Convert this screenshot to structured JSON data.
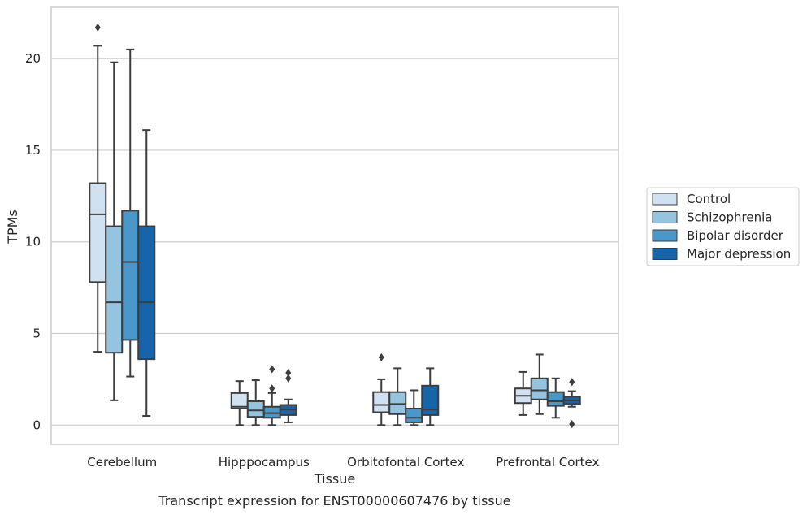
{
  "chart_data": {
    "type": "boxplot",
    "caption": "Transcript expression for ENST00000607476 by tissue",
    "xlabel": "Tissue",
    "ylabel": "TPMs",
    "ylim": [
      -1.05,
      22.8
    ],
    "yticks": [
      0,
      5,
      10,
      15,
      20
    ],
    "grid": "horizontal",
    "legend_position": "right",
    "categories": [
      "Cerebellum",
      "Hipppocampus",
      "Orbitofontal Cortex",
      "Prefrontal Cortex"
    ],
    "series": [
      {
        "name": "Control",
        "color": "#d0e1f2",
        "boxes": [
          {
            "whisker_low": 4.0,
            "q1": 7.8,
            "median": 11.5,
            "q3": 13.2,
            "whisker_high": 20.7,
            "outliers": [
              21.7
            ]
          },
          {
            "whisker_low": 0.0,
            "q1": 0.9,
            "median": 1.0,
            "q3": 1.75,
            "whisker_high": 2.4,
            "outliers": []
          },
          {
            "whisker_low": 0.0,
            "q1": 0.7,
            "median": 1.1,
            "q3": 1.8,
            "whisker_high": 2.5,
            "outliers": [
              3.7
            ]
          },
          {
            "whisker_low": 0.55,
            "q1": 1.2,
            "median": 1.6,
            "q3": 2.0,
            "whisker_high": 2.9,
            "outliers": []
          }
        ]
      },
      {
        "name": "Schizophrenia",
        "color": "#94c4df",
        "boxes": [
          {
            "whisker_low": 1.35,
            "q1": 3.95,
            "median": 6.7,
            "q3": 10.85,
            "whisker_high": 19.8,
            "outliers": []
          },
          {
            "whisker_low": 0.0,
            "q1": 0.45,
            "median": 0.8,
            "q3": 1.3,
            "whisker_high": 2.45,
            "outliers": []
          },
          {
            "whisker_low": 0.0,
            "q1": 0.6,
            "median": 1.15,
            "q3": 1.8,
            "whisker_high": 3.1,
            "outliers": []
          },
          {
            "whisker_low": 0.6,
            "q1": 1.4,
            "median": 1.9,
            "q3": 2.55,
            "whisker_high": 3.85,
            "outliers": []
          }
        ]
      },
      {
        "name": "Bipolar disorder",
        "color": "#4a98c9",
        "boxes": [
          {
            "whisker_low": 2.65,
            "q1": 4.65,
            "median": 8.9,
            "q3": 11.7,
            "whisker_high": 20.5,
            "outliers": []
          },
          {
            "whisker_low": 0.0,
            "q1": 0.4,
            "median": 0.65,
            "q3": 1.0,
            "whisker_high": 1.75,
            "outliers": [
              2.0,
              3.05
            ]
          },
          {
            "whisker_low": 0.0,
            "q1": 0.15,
            "median": 0.4,
            "q3": 0.9,
            "whisker_high": 1.9,
            "outliers": []
          },
          {
            "whisker_low": 0.4,
            "q1": 1.05,
            "median": 1.3,
            "q3": 1.8,
            "whisker_high": 2.55,
            "outliers": []
          }
        ]
      },
      {
        "name": "Major depression",
        "color": "#1764ab",
        "boxes": [
          {
            "whisker_low": 0.5,
            "q1": 3.6,
            "median": 6.7,
            "q3": 10.85,
            "whisker_high": 16.1,
            "outliers": []
          },
          {
            "whisker_low": 0.15,
            "q1": 0.55,
            "median": 0.85,
            "q3": 1.1,
            "whisker_high": 1.4,
            "outliers": [
              2.55,
              2.85
            ]
          },
          {
            "whisker_low": 0.0,
            "q1": 0.55,
            "median": 0.85,
            "q3": 2.15,
            "whisker_high": 3.1,
            "outliers": []
          },
          {
            "whisker_low": 1.0,
            "q1": 1.15,
            "median": 1.35,
            "q3": 1.55,
            "whisker_high": 1.85,
            "outliers": [
              0.05,
              2.35
            ]
          }
        ]
      }
    ]
  }
}
